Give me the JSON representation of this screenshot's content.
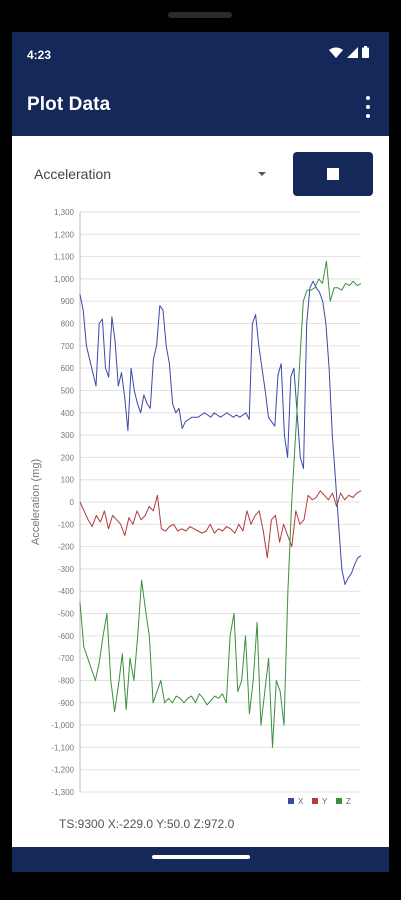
{
  "status": {
    "time": "4:23"
  },
  "appbar": {
    "title": "Plot Data"
  },
  "controls": {
    "sensor_selected": "Acceleration"
  },
  "chart_data": {
    "type": "line",
    "ylabel": "Acceleration (mg)",
    "ylim": [
      -1300,
      1300
    ],
    "yticks": [
      "1,300",
      "1,200",
      "1,100",
      "1,000",
      "900",
      "800",
      "700",
      "600",
      "500",
      "400",
      "300",
      "200",
      "100",
      "0",
      "-100",
      "-200",
      "-300",
      "-400",
      "-500",
      "-600",
      "-700",
      "-800",
      "-900",
      "-1,000",
      "-1,100",
      "-1,200",
      "-1,300"
    ],
    "legend_position": "bottom-right",
    "grid": true,
    "series": [
      {
        "name": "X",
        "color": "#3a4aa8",
        "values": [
          930,
          860,
          700,
          640,
          580,
          520,
          800,
          820,
          600,
          560,
          830,
          720,
          520,
          580,
          470,
          320,
          600,
          500,
          440,
          400,
          480,
          440,
          420,
          640,
          700,
          880,
          860,
          700,
          620,
          440,
          400,
          420,
          330,
          360,
          370,
          380,
          380,
          380,
          390,
          400,
          390,
          380,
          400,
          390,
          380,
          390,
          400,
          390,
          380,
          390,
          380,
          390,
          400,
          370,
          800,
          840,
          700,
          600,
          500,
          380,
          360,
          340,
          570,
          620,
          300,
          200,
          560,
          600,
          400,
          200,
          150,
          800,
          960,
          990,
          960,
          940,
          900,
          800,
          600,
          300,
          100,
          -100,
          -300,
          -370,
          -340,
          -320,
          -280,
          -250,
          -240
        ]
      },
      {
        "name": "Y",
        "color": "#b23b3b",
        "values": [
          0,
          -40,
          -80,
          -110,
          -60,
          -90,
          -40,
          -120,
          -60,
          -80,
          -100,
          -150,
          -70,
          -100,
          -40,
          -80,
          -60,
          -20,
          -40,
          30,
          -120,
          -130,
          -110,
          -100,
          -130,
          -120,
          -130,
          -110,
          -120,
          -130,
          -140,
          -130,
          -100,
          -140,
          -120,
          -130,
          -110,
          -120,
          -140,
          -100,
          -130,
          -40,
          -100,
          -60,
          -40,
          -130,
          -250,
          -80,
          -60,
          -180,
          -100,
          -150,
          -200,
          -40,
          -100,
          -80,
          30,
          10,
          20,
          50,
          30,
          10,
          40,
          -20,
          40,
          10,
          30,
          20,
          40,
          50
        ]
      },
      {
        "name": "Z",
        "color": "#3d8f3d",
        "values": [
          -450,
          -650,
          -700,
          -750,
          -800,
          -720,
          -600,
          -500,
          -800,
          -940,
          -820,
          -680,
          -930,
          -700,
          -800,
          -600,
          -350,
          -480,
          -600,
          -900,
          -850,
          -800,
          -900,
          -880,
          -900,
          -870,
          -880,
          -900,
          -880,
          -870,
          -900,
          -860,
          -880,
          -910,
          -890,
          -870,
          -880,
          -860,
          -900,
          -600,
          -500,
          -850,
          -800,
          -600,
          -950,
          -800,
          -540,
          -1000,
          -850,
          -700,
          -1100,
          -800,
          -850,
          -1000,
          -400,
          0,
          300,
          600,
          900,
          950,
          950,
          960,
          1000,
          980,
          1080,
          900,
          960,
          960,
          950,
          980,
          970,
          990,
          970,
          980
        ]
      }
    ]
  },
  "legend": {
    "x": "X",
    "y": "Y",
    "z": "Z"
  },
  "readout": {
    "text": "TS:9300 X:-229.0 Y:50.0 Z:972.0"
  }
}
